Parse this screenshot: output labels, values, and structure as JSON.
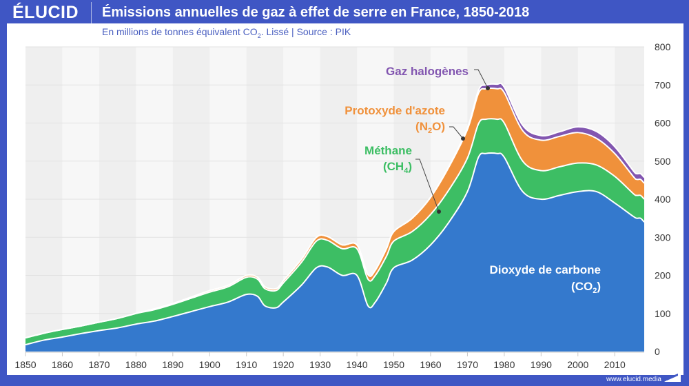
{
  "header": {
    "logo": "ÉLUCID",
    "title": "Émissions annuelles de gaz à effet de serre en France, 1850-2018",
    "subtitle_pre": "En millions de tonnes équivalent CO",
    "subtitle_sub": "2",
    "subtitle_post": ". Lissé  |  Source : PIK"
  },
  "footer": {
    "url": "www.elucid.media"
  },
  "chart_data": {
    "type": "area",
    "stacked": true,
    "title": "Émissions annuelles de gaz à effet de serre en France, 1850-2018",
    "subtitle": "En millions de tonnes équivalent CO2. Lissé | Source : PIK",
    "xlabel": "",
    "ylabel": "",
    "xlim": [
      1850,
      2018
    ],
    "ylim": [
      0,
      800
    ],
    "x_ticks": [
      1850,
      1860,
      1870,
      1880,
      1890,
      1900,
      1910,
      1920,
      1930,
      1940,
      1950,
      1960,
      1970,
      1980,
      1990,
      2000,
      2010
    ],
    "y_ticks": [
      0,
      100,
      200,
      300,
      400,
      500,
      600,
      700,
      800
    ],
    "y_axis_side": "right",
    "grid": true,
    "x": [
      1850,
      1855,
      1860,
      1865,
      1870,
      1875,
      1880,
      1885,
      1890,
      1895,
      1900,
      1905,
      1910,
      1913,
      1915,
      1918,
      1920,
      1925,
      1929,
      1932,
      1936,
      1940,
      1943,
      1945,
      1948,
      1950,
      1955,
      1960,
      1965,
      1970,
      1973,
      1975,
      1978,
      1980,
      1985,
      1990,
      1995,
      2000,
      2005,
      2010,
      2015,
      2016,
      2017,
      2018
    ],
    "series": [
      {
        "name": "Dioxyde de carbone (CO2)",
        "label": "Dioxyde de carbone",
        "label_sub": "(CO",
        "label_sub2": "2",
        "color": "#3479cd",
        "values": [
          18,
          30,
          38,
          47,
          55,
          62,
          72,
          80,
          92,
          105,
          118,
          130,
          150,
          145,
          120,
          115,
          130,
          175,
          220,
          222,
          200,
          200,
          120,
          130,
          180,
          220,
          240,
          280,
          340,
          420,
          510,
          520,
          520,
          510,
          420,
          400,
          410,
          420,
          420,
          390,
          355,
          350,
          350,
          340
        ]
      },
      {
        "name": "Méthane (CH4)",
        "label": "Méthane",
        "label_sub": "(CH",
        "label_sub2": "4",
        "color": "#3dbe64",
        "values": [
          18,
          18,
          20,
          20,
          22,
          25,
          28,
          30,
          32,
          35,
          38,
          40,
          45,
          45,
          45,
          45,
          50,
          60,
          70,
          70,
          70,
          70,
          70,
          70,
          70,
          70,
          75,
          80,
          85,
          88,
          88,
          90,
          90,
          90,
          80,
          75,
          75,
          75,
          70,
          70,
          60,
          60,
          60,
          60
        ]
      },
      {
        "name": "Protoxyde d'azote (N2O)",
        "label": "Protoxyde d'azote",
        "label_sub": "(N",
        "label_sub2": "2",
        "label_sub3": "O)",
        "color": "#f0913b",
        "values": [
          0,
          0,
          0,
          0,
          0,
          0,
          0,
          2,
          2,
          3,
          4,
          4,
          5,
          5,
          5,
          5,
          6,
          8,
          10,
          10,
          10,
          10,
          12,
          14,
          20,
          25,
          35,
          45,
          60,
          75,
          80,
          80,
          80,
          80,
          80,
          80,
          80,
          80,
          70,
          60,
          45,
          42,
          42,
          42
        ]
      },
      {
        "name": "Gaz halogènes",
        "label": "Gaz halogènes",
        "color": "#8256b0",
        "values": [
          0,
          0,
          0,
          0,
          0,
          0,
          0,
          0,
          0,
          0,
          0,
          0,
          0,
          0,
          0,
          0,
          0,
          0,
          0,
          0,
          0,
          0,
          0,
          0,
          0,
          0,
          0,
          0,
          2,
          4,
          8,
          10,
          12,
          14,
          14,
          12,
          12,
          15,
          18,
          18,
          15,
          15,
          15,
          15
        ]
      }
    ],
    "annotations": [
      {
        "series": "Gaz halogènes",
        "x": 1975
      },
      {
        "series": "Protoxyde d'azote (N2O)",
        "x": 1968
      },
      {
        "series": "Méthane (CH4)",
        "x": 1962
      }
    ]
  }
}
